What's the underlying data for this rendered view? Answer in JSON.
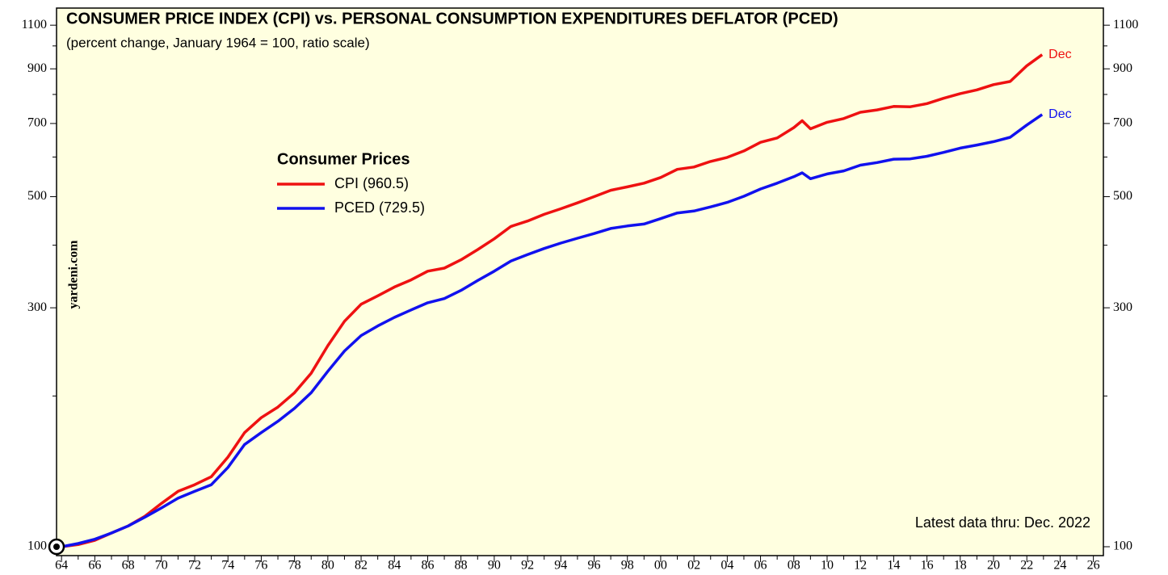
{
  "chart_data": {
    "type": "line",
    "title": "CONSUMER PRICE INDEX (CPI) vs. PERSONAL CONSUMPTION EXPENDITURES DEFLATOR (PCED)",
    "subtitle": "(percent change, January 1964 = 100, ratio scale)",
    "legend_title": "Consumer Prices",
    "annotations": {
      "source": "yardeni.com",
      "latest": "Latest data thru: Dec. 2022",
      "end_label_cpi": "Dec",
      "end_label_pced": "Dec"
    },
    "x": [
      1964,
      1965,
      1966,
      1967,
      1968,
      1969,
      1970,
      1971,
      1972,
      1973,
      1974,
      1975,
      1976,
      1977,
      1978,
      1979,
      1980,
      1981,
      1982,
      1983,
      1984,
      1985,
      1986,
      1987,
      1988,
      1989,
      1990,
      1991,
      1992,
      1993,
      1994,
      1995,
      1996,
      1997,
      1998,
      1999,
      2000,
      2001,
      2002,
      2003,
      2004,
      2005,
      2006,
      2007,
      2008,
      2008.5,
      2009,
      2010,
      2011,
      2012,
      2013,
      2014,
      2015,
      2016,
      2017,
      2018,
      2019,
      2020,
      2021,
      2022,
      2022.92
    ],
    "series": [
      {
        "name": "CPI (960.5)",
        "color": "#ee1111",
        "values": [
          100,
          101,
          103,
          106.5,
          110,
          115,
          122,
          129,
          133,
          138,
          151,
          169,
          181,
          190,
          203,
          222,
          252,
          282,
          305,
          317,
          330,
          341,
          355,
          360,
          374,
          392,
          412,
          436,
          447,
          461,
          473,
          486,
          500,
          515,
          523,
          532,
          546,
          567,
          573,
          588,
          599,
          617,
          642,
          655,
          687,
          709,
          683,
          704,
          716,
          737,
          745,
          757,
          756,
          767,
          786,
          803,
          817,
          837,
          849,
          913,
          960.5
        ]
      },
      {
        "name": "PCED (729.5)",
        "color": "#1111ee",
        "values": [
          100,
          101.5,
          103.5,
          106.5,
          110,
          114.5,
          119.5,
          125,
          129,
          133,
          144,
          160,
          169,
          178,
          189,
          203,
          224,
          246,
          264,
          276,
          287,
          297,
          307,
          313,
          325,
          340,
          355,
          372,
          383,
          394,
          404,
          413,
          422,
          432,
          437,
          441,
          452,
          464,
          468,
          477,
          487,
          501,
          518,
          532,
          548,
          558,
          543,
          555,
          563,
          578,
          585,
          594,
          595,
          602,
          613,
          625,
          634,
          644,
          657,
          695,
          729.5
        ]
      }
    ],
    "log_scale": true,
    "xlim": [
      1963.7,
      2026.6
    ],
    "ylim": [
      96,
      1190
    ],
    "yticks": [
      100,
      300,
      500,
      700,
      900,
      1100
    ],
    "yticks_minor": [
      200,
      400,
      600,
      800,
      1000
    ],
    "xticks": [
      {
        "value": 1964,
        "label": "64"
      },
      {
        "value": 1966,
        "label": "66"
      },
      {
        "value": 1968,
        "label": "68"
      },
      {
        "value": 1970,
        "label": "70"
      },
      {
        "value": 1972,
        "label": "72"
      },
      {
        "value": 1974,
        "label": "74"
      },
      {
        "value": 1976,
        "label": "76"
      },
      {
        "value": 1978,
        "label": "78"
      },
      {
        "value": 1980,
        "label": "80"
      },
      {
        "value": 1982,
        "label": "82"
      },
      {
        "value": 1984,
        "label": "84"
      },
      {
        "value": 1986,
        "label": "86"
      },
      {
        "value": 1988,
        "label": "88"
      },
      {
        "value": 1990,
        "label": "90"
      },
      {
        "value": 1992,
        "label": "92"
      },
      {
        "value": 1994,
        "label": "94"
      },
      {
        "value": 1996,
        "label": "96"
      },
      {
        "value": 1998,
        "label": "98"
      },
      {
        "value": 2000,
        "label": "00"
      },
      {
        "value": 2002,
        "label": "02"
      },
      {
        "value": 2004,
        "label": "04"
      },
      {
        "value": 2006,
        "label": "06"
      },
      {
        "value": 2008,
        "label": "08"
      },
      {
        "value": 2010,
        "label": "10"
      },
      {
        "value": 2012,
        "label": "12"
      },
      {
        "value": 2014,
        "label": "14"
      },
      {
        "value": 2016,
        "label": "16"
      },
      {
        "value": 2018,
        "label": "18"
      },
      {
        "value": 2020,
        "label": "20"
      },
      {
        "value": 2022,
        "label": "22"
      },
      {
        "value": 2024,
        "label": "24"
      },
      {
        "value": 2026,
        "label": "26"
      }
    ],
    "xticks_minor": [
      1965,
      1967,
      1969,
      1971,
      1973,
      1975,
      1977,
      1979,
      1981,
      1983,
      1985,
      1987,
      1989,
      1991,
      1993,
      1995,
      1997,
      1999,
      2001,
      2003,
      2005,
      2007,
      2009,
      2011,
      2013,
      2015,
      2017,
      2019,
      2021,
      2023,
      2025
    ],
    "grid": false,
    "background": "#ffffe0"
  }
}
